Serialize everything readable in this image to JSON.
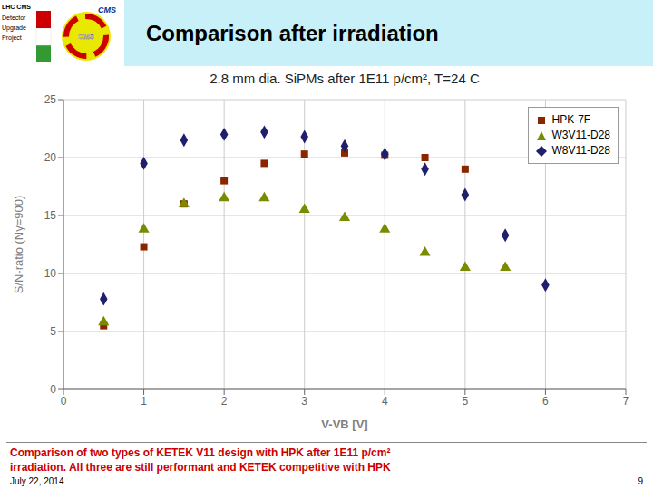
{
  "chart_data": {
    "type": "scatter",
    "title": "Comparison after irradiation",
    "subtitle": "2.8 mm dia. SiPMs after 1E11 p/cm², T=24 C",
    "x_label": "V-VB [V]",
    "y_label": "S/N-ratio (Nγ=900)",
    "xlim": [
      0,
      7
    ],
    "ylim": [
      0,
      25
    ],
    "xticks": [
      0,
      1,
      2,
      3,
      4,
      5,
      6,
      7
    ],
    "yticks": [
      0,
      5,
      10,
      15,
      20,
      25
    ],
    "grid": true,
    "legend": "upper right",
    "series": [
      {
        "name": "HPK-7F",
        "color": "#8B2500",
        "marker": "square",
        "x": [
          0.5,
          1.0,
          1.5,
          2.0,
          2.5,
          3.0,
          3.5,
          4.0,
          4.5,
          5.0
        ],
        "values": [
          5.5,
          12.3,
          16.0,
          18.0,
          19.5,
          20.3,
          20.4,
          20.2,
          20.0,
          19.0
        ]
      },
      {
        "name": "W3V11-D28",
        "color": "#7B8B00",
        "marker": "triangle",
        "x": [
          0.5,
          1.0,
          1.5,
          2.0,
          2.5,
          3.0,
          3.5,
          4.0,
          4.5,
          5.0,
          5.5
        ],
        "values": [
          5.8,
          13.8,
          16.0,
          16.5,
          16.5,
          15.5,
          14.8,
          13.8,
          11.8,
          10.5,
          10.5
        ]
      },
      {
        "name": "W8V11-D28",
        "color": "#1F1F6B",
        "marker": "diamond",
        "x": [
          0.5,
          1.0,
          1.5,
          2.0,
          2.5,
          3.0,
          3.5,
          4.0,
          4.5,
          5.0,
          5.5,
          6.0
        ],
        "values": [
          7.8,
          19.5,
          21.5,
          22.0,
          22.2,
          21.8,
          21.0,
          20.3,
          19.0,
          16.8,
          13.3,
          9.0
        ]
      }
    ],
    "annotations": [
      "LHC CMS",
      "Detector",
      "Upgrade",
      "Project",
      "CMS",
      "CMS",
      "Comparison of two types of KETEK V11 design with HPK after 1E11 p/cm²",
      "irradiation.  All three are still performant and KETEK competitive with HPK",
      "July 22, 2014",
      "9"
    ]
  }
}
